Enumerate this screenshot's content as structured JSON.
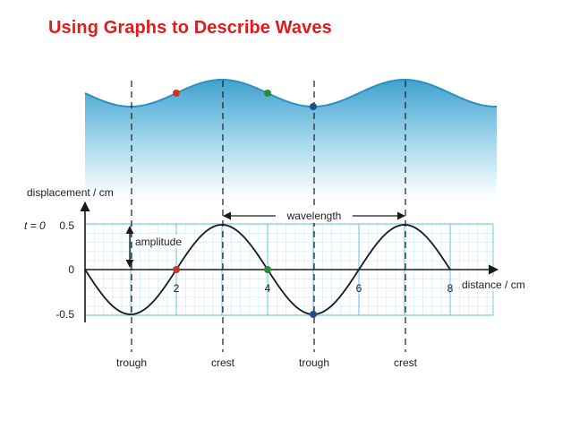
{
  "title": "Using Graphs to Describe Waves",
  "colors": {
    "title": "#e01b1b",
    "water_top": "#3fa2cf",
    "water_bottom": "#ffffff",
    "grid": "#7fd0e6",
    "grid_border": "#5fbcd8",
    "curve": "#1a1a1a",
    "dot_red": "#c0392b",
    "dot_green": "#2e8b3c",
    "dot_blue": "#1f4e8c"
  },
  "axes": {
    "ylabel": "displacement / cm",
    "xlabel": "distance / cm",
    "time_label": "t = 0",
    "y_ticks": [
      "0.5",
      "0",
      "-0.5"
    ],
    "x_ticks": [
      "2",
      "4",
      "6",
      "8"
    ]
  },
  "annotations": {
    "amplitude": "amplitude",
    "wavelength": "wavelength",
    "positions": [
      "trough",
      "crest",
      "trough",
      "crest"
    ]
  },
  "wave": {
    "amplitude_cm": 0.5,
    "wavelength_cm": 4,
    "x_range_cm": [
      0,
      8
    ],
    "markers": [
      {
        "name": "red",
        "x_cm": 2,
        "y_cm": 0
      },
      {
        "name": "green",
        "x_cm": 4,
        "y_cm": 0
      },
      {
        "name": "blue",
        "x_cm": 5,
        "y_cm": -0.5
      }
    ],
    "guide_x_cm": [
      1,
      3,
      5,
      7
    ]
  }
}
